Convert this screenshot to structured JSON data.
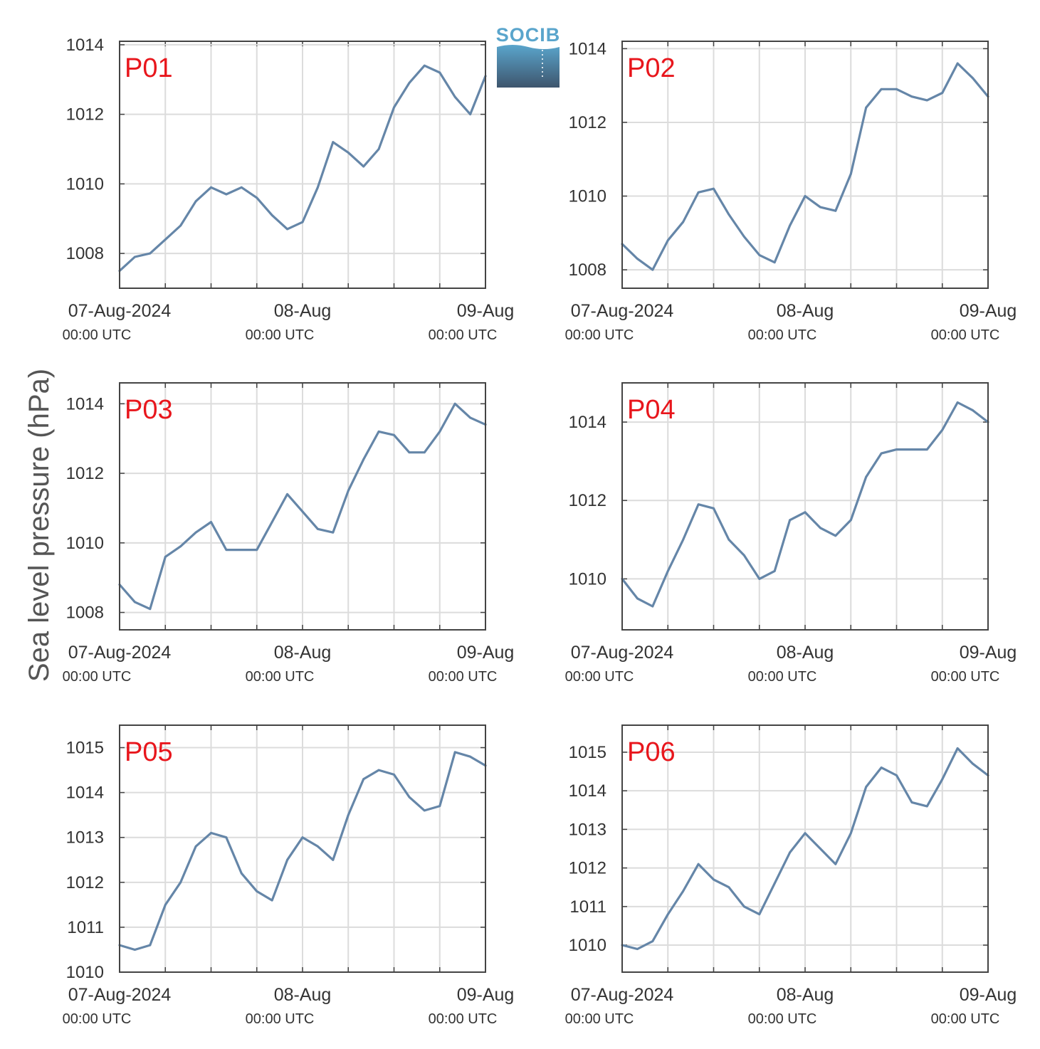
{
  "figure": {
    "ylabel": "Sea level pressure (hPa)",
    "logo_text": "SOCIB",
    "colors": {
      "line": "#6586a8",
      "title": "#e8161c",
      "grid": "#dcdcdc",
      "frame": "#444444",
      "logo_top": "#5aa5cc",
      "logo_bottom": "#3e556d"
    }
  },
  "chart_data": [
    {
      "type": "line",
      "title": "P01",
      "ylim": [
        1007,
        1014.1
      ],
      "yticks": [
        1008,
        1010,
        1012,
        1014
      ],
      "xticks": [
        {
          "date": "07-Aug-2024",
          "time": "00:00 UTC"
        },
        {
          "date": "08-Aug",
          "time": "00:00 UTC"
        },
        {
          "date": "09-Aug",
          "time": "00:00 UTC"
        }
      ],
      "x_hours": [
        0,
        2,
        4,
        6,
        8,
        10,
        12,
        14,
        16,
        18,
        20,
        22,
        24,
        26,
        28,
        30,
        32,
        34,
        36,
        38,
        40,
        42,
        44,
        46,
        48
      ],
      "values": [
        1007.5,
        1007.9,
        1008.0,
        1008.4,
        1008.8,
        1009.5,
        1009.9,
        1009.7,
        1009.9,
        1009.6,
        1009.1,
        1008.7,
        1008.9,
        1009.9,
        1011.2,
        1010.9,
        1010.5,
        1011.0,
        1012.2,
        1012.9,
        1013.4,
        1013.2,
        1012.5,
        1012.0,
        1013.1
      ]
    },
    {
      "type": "line",
      "title": "P02",
      "ylim": [
        1007.5,
        1014.2
      ],
      "yticks": [
        1008,
        1010,
        1012,
        1014
      ],
      "xticks": [
        {
          "date": "07-Aug-2024",
          "time": "00:00 UTC"
        },
        {
          "date": "08-Aug",
          "time": "00:00 UTC"
        },
        {
          "date": "09-Aug",
          "time": "00:00 UTC"
        }
      ],
      "x_hours": [
        0,
        2,
        4,
        6,
        8,
        10,
        12,
        14,
        16,
        18,
        20,
        22,
        24,
        26,
        28,
        30,
        32,
        34,
        36,
        38,
        40,
        42,
        44,
        46,
        48
      ],
      "values": [
        1008.7,
        1008.3,
        1008.0,
        1008.8,
        1009.3,
        1010.1,
        1010.2,
        1009.5,
        1008.9,
        1008.4,
        1008.2,
        1009.2,
        1010.0,
        1009.7,
        1009.6,
        1010.6,
        1012.4,
        1012.9,
        1012.9,
        1012.7,
        1012.6,
        1012.8,
        1013.6,
        1013.2,
        1012.7
      ]
    },
    {
      "type": "line",
      "title": "P03",
      "ylim": [
        1007.5,
        1014.6
      ],
      "yticks": [
        1008,
        1010,
        1012,
        1014
      ],
      "xticks": [
        {
          "date": "07-Aug-2024",
          "time": "00:00 UTC"
        },
        {
          "date": "08-Aug",
          "time": "00:00 UTC"
        },
        {
          "date": "09-Aug",
          "time": "00:00 UTC"
        }
      ],
      "x_hours": [
        0,
        2,
        4,
        6,
        8,
        10,
        12,
        14,
        16,
        18,
        20,
        22,
        24,
        26,
        28,
        30,
        32,
        34,
        36,
        38,
        40,
        42,
        44,
        46,
        48
      ],
      "values": [
        1008.8,
        1008.3,
        1008.1,
        1009.6,
        1009.9,
        1010.3,
        1010.6,
        1009.8,
        1009.8,
        1009.8,
        1010.6,
        1011.4,
        1010.9,
        1010.4,
        1010.3,
        1011.5,
        1012.4,
        1013.2,
        1013.1,
        1012.6,
        1012.6,
        1013.2,
        1014.0,
        1013.6,
        1013.4
      ]
    },
    {
      "type": "line",
      "title": "P04",
      "ylim": [
        1008.7,
        1015
      ],
      "yticks": [
        1010,
        1012,
        1014
      ],
      "xticks": [
        {
          "date": "07-Aug-2024",
          "time": "00:00 UTC"
        },
        {
          "date": "08-Aug",
          "time": "00:00 UTC"
        },
        {
          "date": "09-Aug",
          "time": "00:00 UTC"
        }
      ],
      "x_hours": [
        0,
        2,
        4,
        6,
        8,
        10,
        12,
        14,
        16,
        18,
        20,
        22,
        24,
        26,
        28,
        30,
        32,
        34,
        36,
        38,
        40,
        42,
        44,
        46,
        48
      ],
      "values": [
        1010.0,
        1009.5,
        1009.3,
        1010.2,
        1011.0,
        1011.9,
        1011.8,
        1011.0,
        1010.6,
        1010.0,
        1010.2,
        1011.5,
        1011.7,
        1011.3,
        1011.1,
        1011.5,
        1012.6,
        1013.2,
        1013.3,
        1013.3,
        1013.3,
        1013.8,
        1014.5,
        1014.3,
        1014.0
      ]
    },
    {
      "type": "line",
      "title": "P05",
      "ylim": [
        1010,
        1015.5
      ],
      "yticks": [
        1010,
        1011,
        1012,
        1013,
        1014,
        1015
      ],
      "xticks": [
        {
          "date": "07-Aug-2024",
          "time": "00:00 UTC"
        },
        {
          "date": "08-Aug",
          "time": "00:00 UTC"
        },
        {
          "date": "09-Aug",
          "time": "00:00 UTC"
        }
      ],
      "x_hours": [
        0,
        2,
        4,
        6,
        8,
        10,
        12,
        14,
        16,
        18,
        20,
        22,
        24,
        26,
        28,
        30,
        32,
        34,
        36,
        38,
        40,
        42,
        44,
        46,
        48
      ],
      "values": [
        1010.6,
        1010.5,
        1010.6,
        1011.5,
        1012.0,
        1012.8,
        1013.1,
        1013.0,
        1012.2,
        1011.8,
        1011.6,
        1012.5,
        1013.0,
        1012.8,
        1012.5,
        1013.5,
        1014.3,
        1014.5,
        1014.4,
        1013.9,
        1013.6,
        1013.7,
        1014.9,
        1014.8,
        1014.6
      ]
    },
    {
      "type": "line",
      "title": "P06",
      "ylim": [
        1009.3,
        1015.7
      ],
      "yticks": [
        1010,
        1011,
        1012,
        1013,
        1014,
        1015
      ],
      "xticks": [
        {
          "date": "07-Aug-2024",
          "time": "00:00 UTC"
        },
        {
          "date": "08-Aug",
          "time": "00:00 UTC"
        },
        {
          "date": "09-Aug",
          "time": "00:00 UTC"
        }
      ],
      "x_hours": [
        0,
        2,
        4,
        6,
        8,
        10,
        12,
        14,
        16,
        18,
        20,
        22,
        24,
        26,
        28,
        30,
        32,
        34,
        36,
        38,
        40,
        42,
        44,
        46,
        48
      ],
      "values": [
        1010.0,
        1009.9,
        1010.1,
        1010.8,
        1011.4,
        1012.1,
        1011.7,
        1011.5,
        1011.0,
        1010.8,
        1011.6,
        1012.4,
        1012.9,
        1012.5,
        1012.1,
        1012.9,
        1014.1,
        1014.6,
        1014.4,
        1013.7,
        1013.6,
        1014.3,
        1015.1,
        1014.7,
        1014.4
      ]
    }
  ]
}
